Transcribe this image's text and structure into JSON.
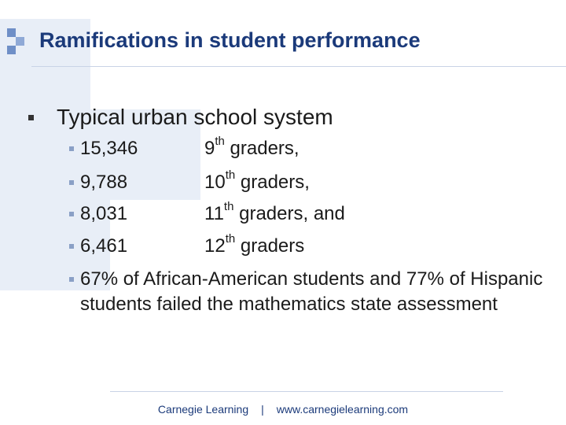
{
  "slide": {
    "title": "Ramifications in student performance",
    "main_bullet": "Typical urban school system",
    "grades": [
      {
        "count": "15,346",
        "grade_num": "9",
        "suffix": "th",
        "rest": " graders,"
      },
      {
        "count": "9,788",
        "grade_num": "10",
        "suffix": "th",
        "rest": " graders,"
      },
      {
        "count": "8,031",
        "grade_num": "11",
        "suffix": "th",
        "rest": " graders, and"
      },
      {
        "count": "6,461",
        "grade_num": "12",
        "suffix": "th",
        "rest": " graders"
      }
    ],
    "assessment": "67% of African-American students and 77% of Hispanic students failed the mathematics state assessment"
  },
  "footer": {
    "company": "Carnegie Learning",
    "separator": "|",
    "url": "www.carnegielearning.com"
  },
  "colors": {
    "title": "#1b3a7a",
    "accent_light": "#e8eef7",
    "logo": "#6f8fc7"
  }
}
